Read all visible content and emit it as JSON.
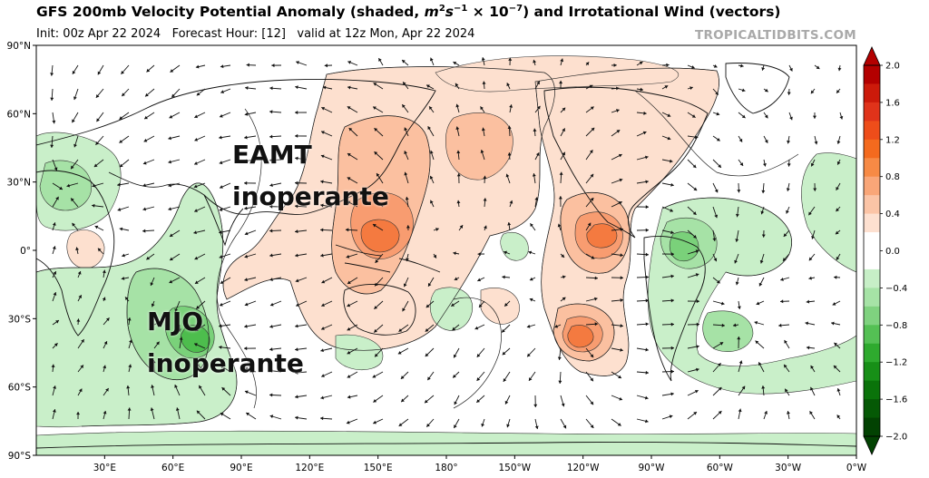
{
  "title": {
    "main": "GFS 200mb Velocity Potential Anomaly (shaded, ",
    "units_base": "m",
    "units_exp1": "2",
    "units_s": "s",
    "units_exp2": "−1",
    "units_mult": " × 10",
    "units_exp3": "−7",
    "tail": ") and Irrotational Wind (vectors)"
  },
  "subtitle": "Init: 00z Apr 22 2024   Forecast Hour: [12]   valid at 12z Mon, Apr 22 2024",
  "brand": "TROPICALTIDBITS.COM",
  "annotations": {
    "eamt_title": "EAMT",
    "eamt_status": "inoperante",
    "mjo_title": "MJO",
    "mjo_status": "inoperante"
  },
  "axes": {
    "lat_labels": [
      "90°N",
      "60°N",
      "30°N",
      "0°",
      "30°S",
      "60°S",
      "90°S"
    ],
    "lon_labels": [
      "30°E",
      "60°E",
      "90°E",
      "120°E",
      "150°E",
      "180°",
      "150°W",
      "120°W",
      "90°W",
      "60°W",
      "30°W",
      "0°W"
    ]
  },
  "colorbar": {
    "labels": [
      "2.0",
      "1.6",
      "1.2",
      "0.8",
      "0.4",
      "0.0",
      "−0.4",
      "−0.8",
      "−1.2",
      "−1.6",
      "−2.0"
    ],
    "colors_top_to_bottom": [
      "#b30000",
      "#cc1a0a",
      "#e0331a",
      "#ee4d1a",
      "#f46a1e",
      "#f78a45",
      "#f9a678",
      "#fbc4a6",
      "#fde0d0",
      "#ffffff",
      "#ffffff",
      "#c7efc7",
      "#a6e3a6",
      "#7fd27f",
      "#54c054",
      "#2eaa2e",
      "#178f17",
      "#0a730a",
      "#055905",
      "#024202"
    ]
  },
  "map_colors": {
    "pos1": "#fde0cf",
    "pos2": "#fbc0a0",
    "pos3": "#f89c70",
    "pos4": "#f47a40",
    "neg1": "#c9efc9",
    "neg2": "#a6e2a6",
    "neg3": "#7ad17a",
    "neg4": "#4dbd4d"
  }
}
